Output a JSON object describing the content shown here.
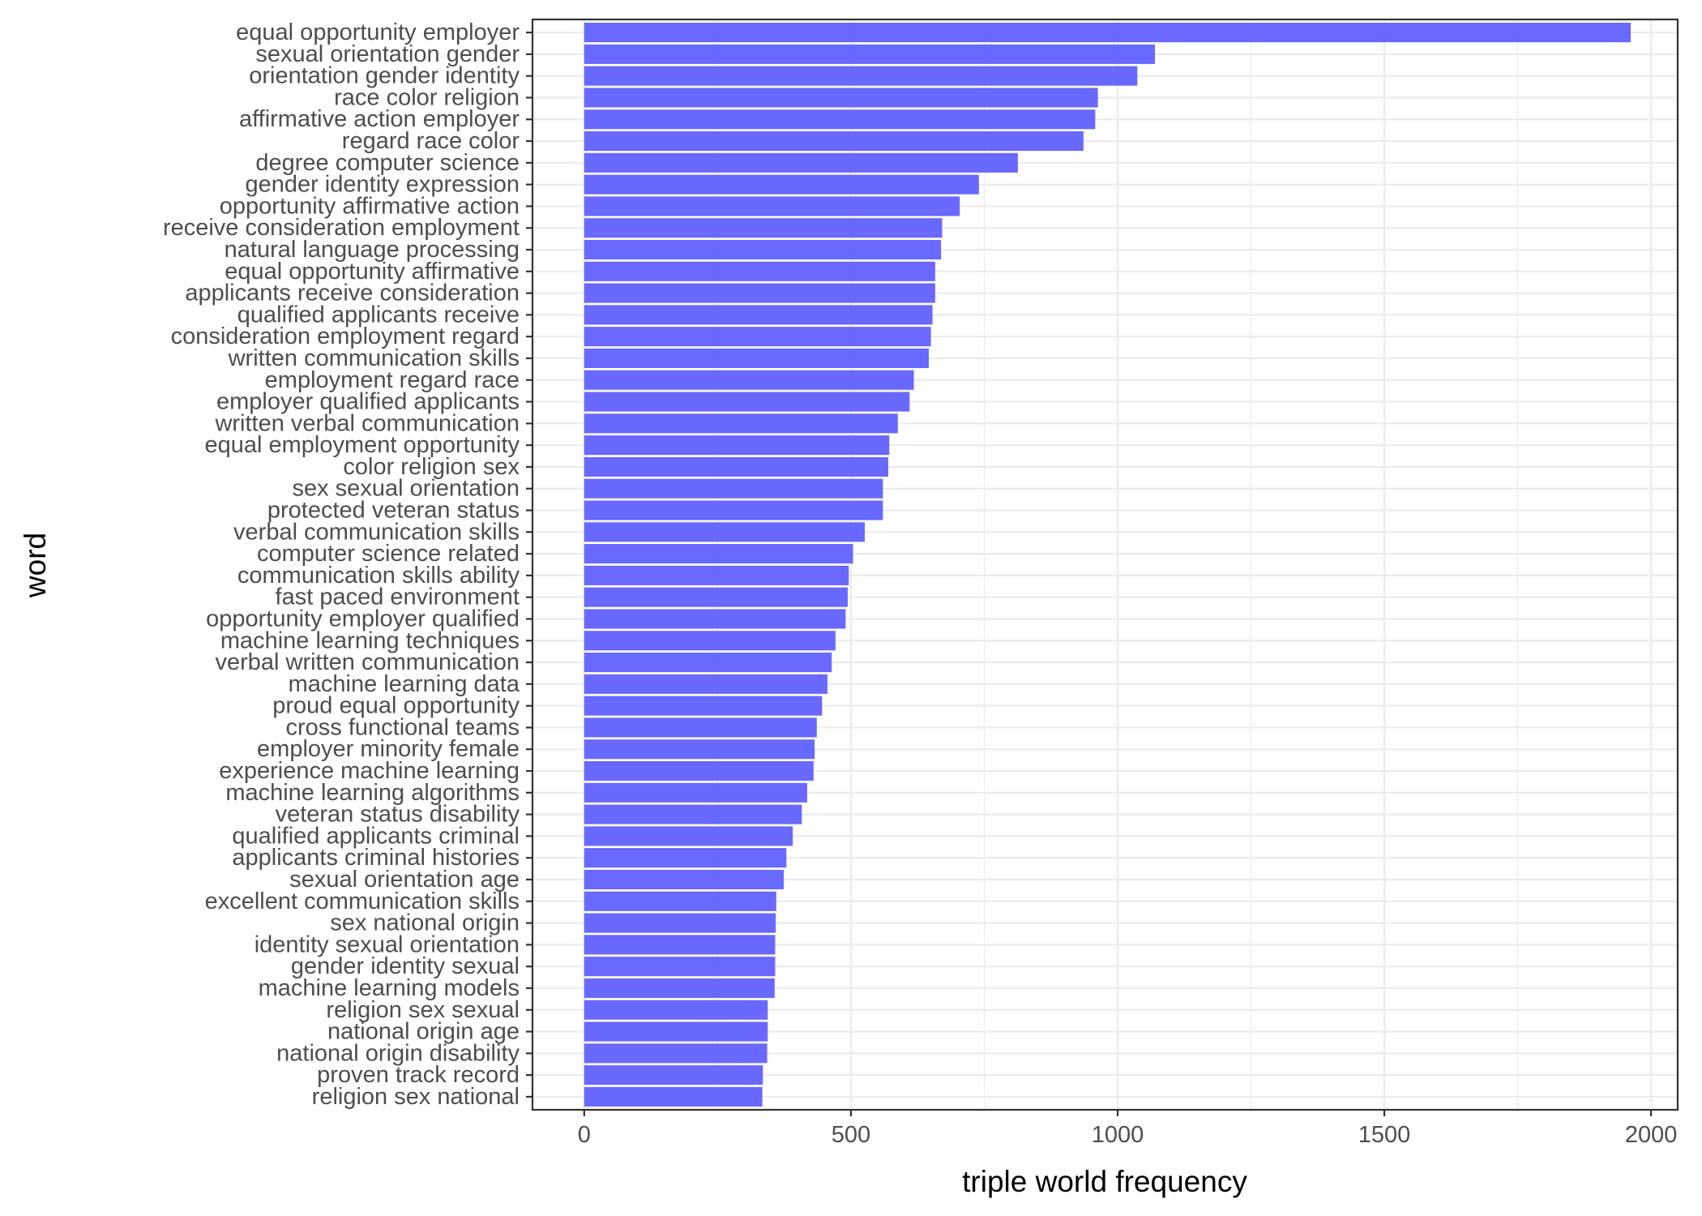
{
  "chart_data": {
    "type": "bar",
    "orientation": "horizontal",
    "xlabel": "triple world frequency",
    "ylabel": "word",
    "xlim": [
      -97,
      2050
    ],
    "xticks": [
      0,
      500,
      1000,
      1500,
      2000
    ],
    "grid": true,
    "legend": "none",
    "bar_color": "#5c5cff",
    "categories": [
      "equal opportunity employer",
      "sexual orientation gender",
      "orientation gender identity",
      "race color religion",
      "affirmative action employer",
      "regard race color",
      "degree computer science",
      "gender identity expression",
      "opportunity affirmative action",
      "receive consideration employment",
      "natural language processing",
      "equal opportunity affirmative",
      "applicants receive consideration",
      "qualified applicants receive",
      "consideration employment regard",
      "written communication skills",
      "employment regard race",
      "employer qualified applicants",
      "written verbal communication",
      "equal employment opportunity",
      "color religion sex",
      "sex sexual orientation",
      "protected veteran status",
      "verbal communication skills",
      "computer science related",
      "communication skills ability",
      "fast paced environment",
      "opportunity employer qualified",
      "machine learning techniques",
      "verbal written communication",
      "machine learning data",
      "proud equal opportunity",
      "cross functional teams",
      "employer minority female",
      "experience machine learning",
      "machine learning algorithms",
      "veteran status disability",
      "qualified applicants criminal",
      "applicants criminal histories",
      "sexual orientation age",
      "excellent communication skills",
      "sex national origin",
      "identity sexual orientation",
      "gender identity sexual",
      "machine learning models",
      "religion sex sexual",
      "national origin age",
      "national origin disability",
      "proven track record",
      "religion sex national"
    ],
    "values": [
      1962,
      1070,
      1037,
      963,
      958,
      936,
      813,
      740,
      704,
      671,
      669,
      658,
      658,
      653,
      650,
      646,
      618,
      610,
      588,
      572,
      570,
      560,
      560,
      526,
      504,
      496,
      494,
      490,
      471,
      464,
      456,
      446,
      436,
      432,
      430,
      418,
      408,
      391,
      379,
      374,
      360,
      359,
      358,
      358,
      357,
      344,
      344,
      343,
      335,
      334
    ]
  }
}
